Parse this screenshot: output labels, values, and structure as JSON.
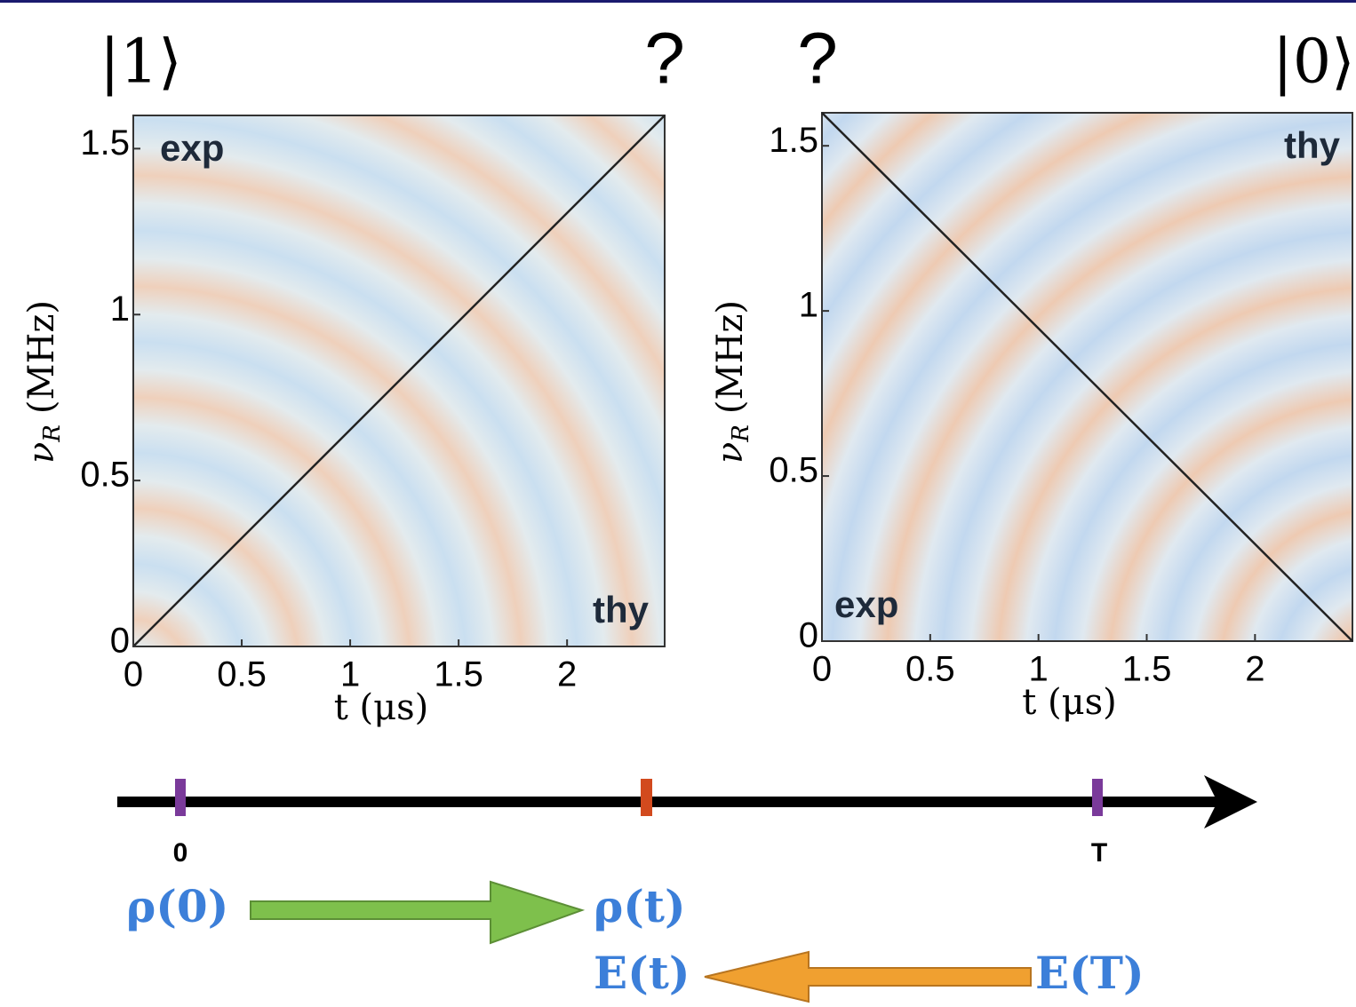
{
  "header": {
    "left_state": "|1⟩",
    "left_question": "?",
    "right_question": "?",
    "right_state": "|0⟩"
  },
  "panels": [
    {
      "xlim": [
        0,
        2.45
      ],
      "ylim": [
        0,
        1.6
      ],
      "xticks": [
        0,
        0.5,
        1,
        1.5,
        2
      ],
      "yticks": [
        0,
        0.5,
        1,
        1.5
      ],
      "x_label": "t (μs)",
      "y_label": {
        "symbol": "ν",
        "subscript": "R",
        "unit": "(MHz)"
      },
      "top_note": "exp",
      "bottom_note": "thy"
    },
    {
      "xlim": [
        0,
        2.45
      ],
      "ylim": [
        0,
        1.6
      ],
      "xticks": [
        0,
        0.5,
        1,
        1.5,
        2
      ],
      "yticks": [
        0,
        0.5,
        1,
        1.5
      ],
      "x_label": "t (μs)",
      "y_label": {
        "symbol": "ν",
        "subscript": "R",
        "unit": "(MHz)"
      },
      "top_note": "thy",
      "bottom_note": "exp"
    }
  ],
  "timeline": {
    "start_label": "0",
    "end_label": "T",
    "rho_start": "ρ(0)",
    "rho_t": "ρ(t)",
    "e_t": "E(t)",
    "e_end": "E(T)"
  }
}
